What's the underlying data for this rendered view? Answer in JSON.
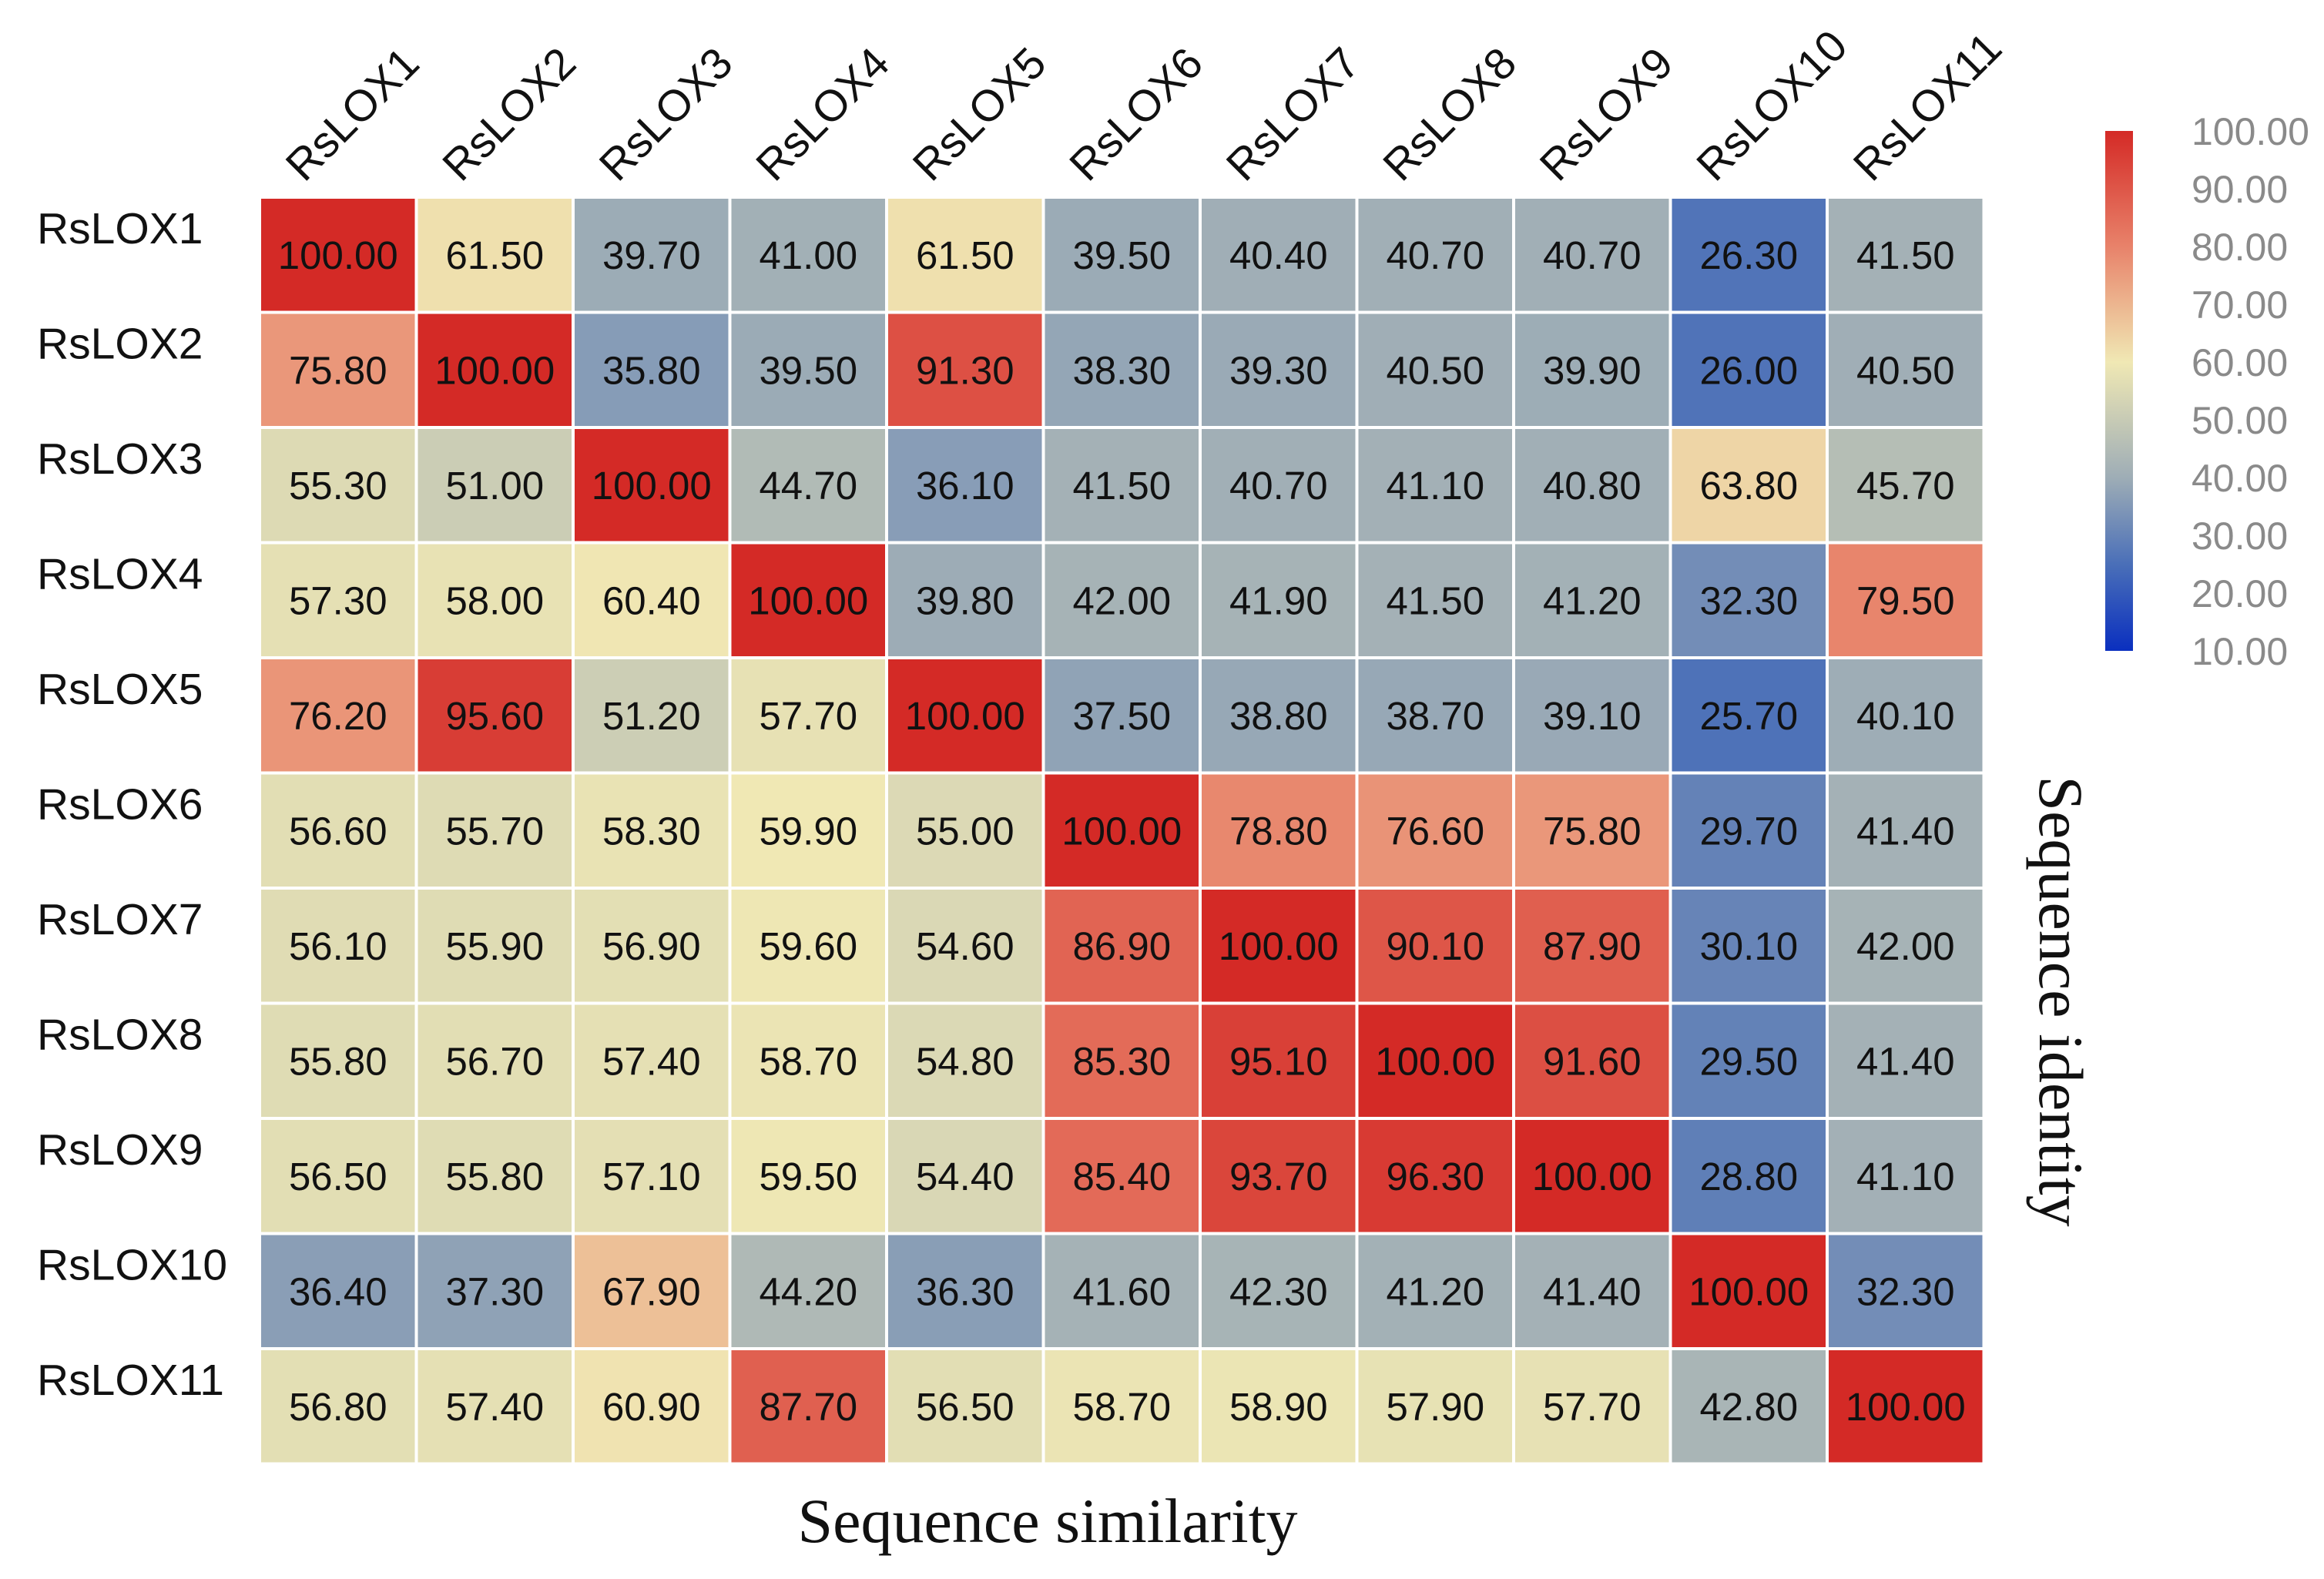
{
  "chart_data": {
    "type": "heatmap",
    "row_labels": [
      "RsLOX1",
      "RsLOX2",
      "RsLOX3",
      "RsLOX4",
      "RsLOX5",
      "RsLOX6",
      "RsLOX7",
      "RsLOX8",
      "RsLOX9",
      "RsLOX10",
      "RsLOX11"
    ],
    "col_labels": [
      "RsLOX1",
      "RsLOX2",
      "RsLOX3",
      "RsLOX4",
      "RsLOX5",
      "RsLOX6",
      "RsLOX7",
      "RsLOX8",
      "RsLOX9",
      "RsLOX10",
      "RsLOX11"
    ],
    "values": [
      [
        100.0,
        61.5,
        39.7,
        41.0,
        61.5,
        39.5,
        40.4,
        40.7,
        40.7,
        26.3,
        41.5
      ],
      [
        75.8,
        100.0,
        35.8,
        39.5,
        91.3,
        38.3,
        39.3,
        40.5,
        39.9,
        26.0,
        40.5
      ],
      [
        55.3,
        51.0,
        100.0,
        44.7,
        36.1,
        41.5,
        40.7,
        41.1,
        40.8,
        63.8,
        45.7
      ],
      [
        57.3,
        58.0,
        60.4,
        100.0,
        39.8,
        42.0,
        41.9,
        41.5,
        41.2,
        32.3,
        79.5
      ],
      [
        76.2,
        95.6,
        51.2,
        57.7,
        100.0,
        37.5,
        38.8,
        38.7,
        39.1,
        25.7,
        40.1
      ],
      [
        56.6,
        55.7,
        58.3,
        59.9,
        55.0,
        100.0,
        78.8,
        76.6,
        75.8,
        29.7,
        41.4
      ],
      [
        56.1,
        55.9,
        56.9,
        59.6,
        54.6,
        86.9,
        100.0,
        90.1,
        87.9,
        30.1,
        42.0
      ],
      [
        55.8,
        56.7,
        57.4,
        58.7,
        54.8,
        85.3,
        95.1,
        100.0,
        91.6,
        29.5,
        41.4
      ],
      [
        56.5,
        55.8,
        57.1,
        59.5,
        54.4,
        85.4,
        93.7,
        96.3,
        100.0,
        28.8,
        41.1
      ],
      [
        36.4,
        37.3,
        67.9,
        44.2,
        36.3,
        41.6,
        42.3,
        41.2,
        41.4,
        100.0,
        32.3
      ],
      [
        56.8,
        57.4,
        60.9,
        87.7,
        56.5,
        58.7,
        58.9,
        57.9,
        57.7,
        42.8,
        100.0
      ]
    ],
    "value_format_decimals": 2,
    "xlabel": "Sequence similarity",
    "ylabel": "Sequence identity",
    "colorbar": {
      "min": 10,
      "max": 100,
      "ticks": [
        "100.00",
        "90.00",
        "80.00",
        "70.00",
        "60.00",
        "50.00",
        "40.00",
        "30.00",
        "20.00",
        "10.00"
      ],
      "placement": "right"
    },
    "colorscale": [
      {
        "value": 10,
        "color": "#0a2fbf"
      },
      {
        "value": 25,
        "color": "#4a6fb8"
      },
      {
        "value": 40,
        "color": "#9eadb6"
      },
      {
        "value": 60,
        "color": "#f0e8b4"
      },
      {
        "value": 80,
        "color": "#e8826a"
      },
      {
        "value": 100,
        "color": "#d42a26"
      }
    ],
    "gridline_color": "#ffffff",
    "cell_text_color": "#111111",
    "tick_text_color": "#111111",
    "colorbar_text_color": "#8a8a8a"
  }
}
